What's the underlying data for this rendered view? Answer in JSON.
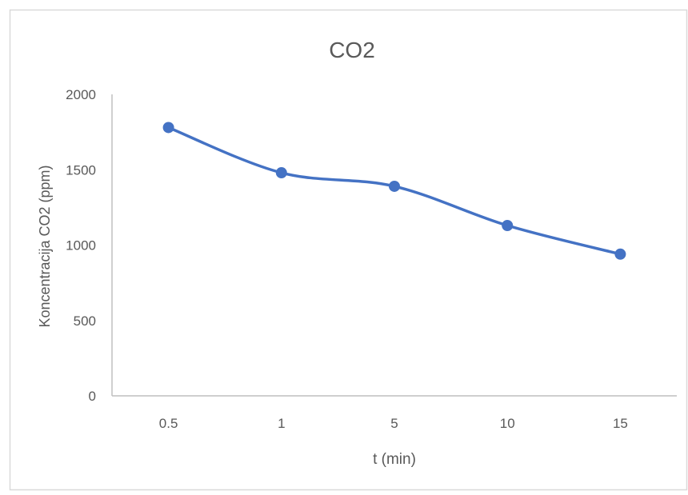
{
  "chart_data": {
    "type": "line",
    "title": "CO2",
    "xlabel": "t (min)",
    "ylabel": "Koncentracija CO2 (ppm)",
    "categories": [
      "0.5",
      "1",
      "5",
      "10",
      "15"
    ],
    "series": [
      {
        "values": [
          1780,
          1480,
          1390,
          1130,
          940
        ]
      }
    ],
    "ylim": [
      0,
      2000
    ],
    "yticks": [
      "0",
      "500",
      "1000",
      "1500",
      "2000"
    ],
    "grid": false,
    "legend": "none",
    "colors": {
      "series": "#4472C4",
      "axis": "#BFBFBF",
      "text": "#595959",
      "frame": "#D9D9D9"
    }
  }
}
